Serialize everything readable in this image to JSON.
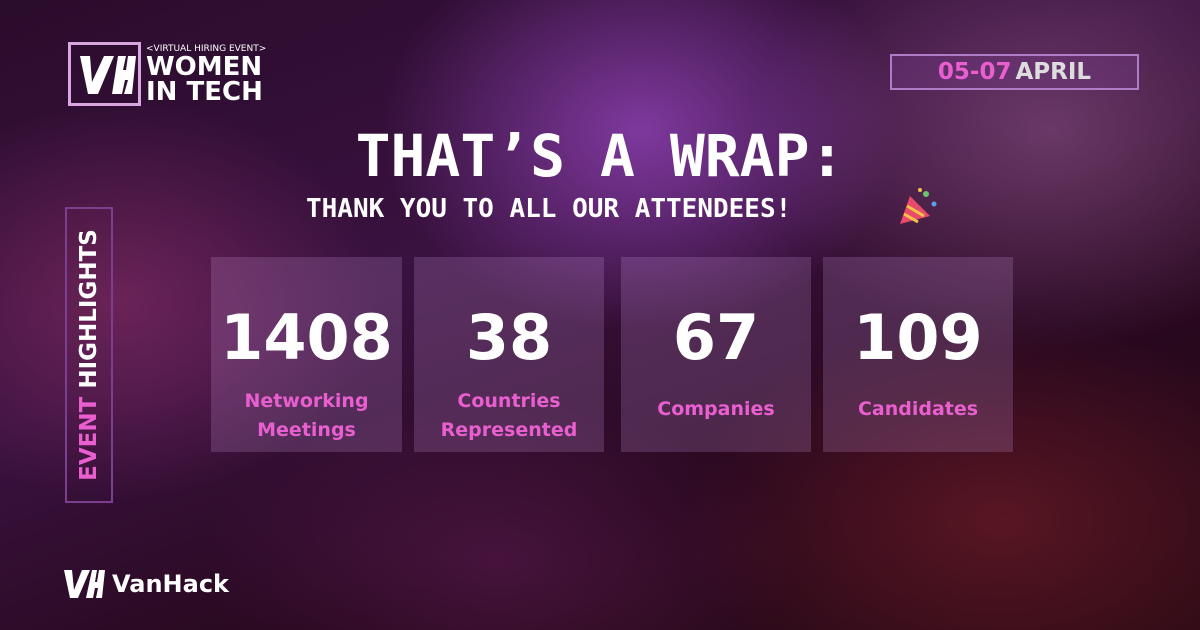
{
  "header": {
    "tagline": "<VIRTUAL HIRING EVENT>",
    "title_lines": [
      "WOMEN",
      "IN TECH"
    ]
  },
  "date": {
    "days": "05-07",
    "month": "APRIL"
  },
  "headline": {
    "title": "THAT’S A WRAP:",
    "subtitle": "THANK YOU TO ALL OUR ATTENDEES!"
  },
  "sidebar": {
    "words": [
      "EVENT",
      "HIGHLIGHTS"
    ]
  },
  "stats": [
    {
      "value": 1408,
      "label_lines": [
        "Networking",
        "Meetings"
      ]
    },
    {
      "value": 38,
      "label_lines": [
        "Countries",
        "Represented"
      ]
    },
    {
      "value": 67,
      "label_lines": [
        "Companies"
      ]
    },
    {
      "value": 109,
      "label_lines": [
        "Candidates"
      ]
    }
  ],
  "footer": {
    "brand": "VanHack"
  }
}
